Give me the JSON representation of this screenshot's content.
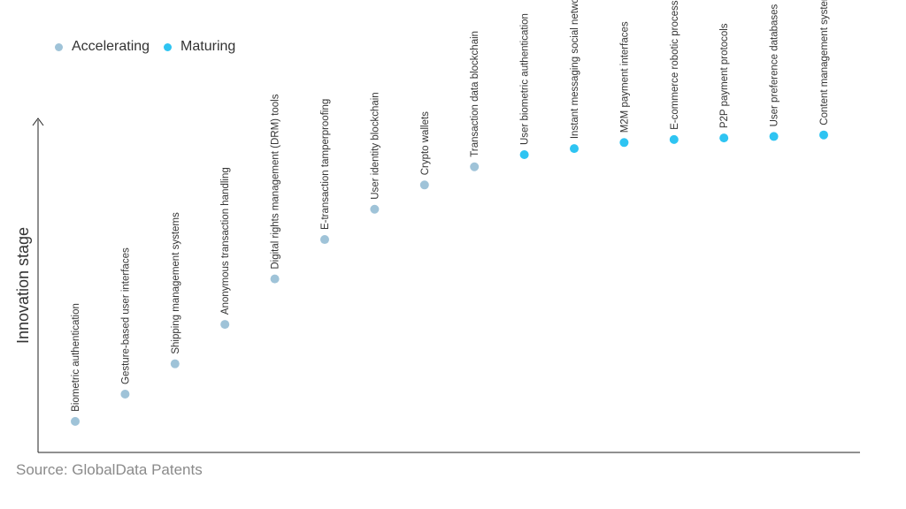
{
  "colors": {
    "accelerating": "#9fc3d8",
    "maturing": "#2ec4f2",
    "axis": "#222222"
  },
  "source": "Source: GlobalData Patents",
  "chart_data": {
    "type": "scatter",
    "ylabel": "Innovation stage",
    "legend": {
      "placement": "top-left",
      "entries": [
        {
          "label": "Accelerating",
          "color": "#9fc3d8"
        },
        {
          "label": "Maturing",
          "color": "#2ec4f2"
        }
      ]
    },
    "ylim": [
      0,
      100
    ],
    "grid": false,
    "points": [
      {
        "label": "Biometric authentication",
        "stage": "Accelerating",
        "value": 5
      },
      {
        "label": "Gesture-based user interfaces",
        "stage": "Accelerating",
        "value": 14
      },
      {
        "label": "Shipping management systems",
        "stage": "Accelerating",
        "value": 24
      },
      {
        "label": "Anonymous transaction handling",
        "stage": "Accelerating",
        "value": 37
      },
      {
        "label": "Digital rights management (DRM) tools",
        "stage": "Accelerating",
        "value": 52
      },
      {
        "label": "E-transaction tamperproofing",
        "stage": "Accelerating",
        "value": 65
      },
      {
        "label": "User identity blockchain",
        "stage": "Accelerating",
        "value": 75
      },
      {
        "label": "Crypto wallets",
        "stage": "Accelerating",
        "value": 83
      },
      {
        "label": "Transaction data blockchain",
        "stage": "Accelerating",
        "value": 89
      },
      {
        "label": "User biometric authentication",
        "stage": "Maturing",
        "value": 93
      },
      {
        "label": "Instant messaging social network",
        "stage": "Maturing",
        "value": 95
      },
      {
        "label": "M2M payment interfaces",
        "stage": "Maturing",
        "value": 97
      },
      {
        "label": "E-commerce robotic process automation",
        "stage": "Maturing",
        "value": 98
      },
      {
        "label": "P2P payment protocols",
        "stage": "Maturing",
        "value": 98.5
      },
      {
        "label": "User preference databases",
        "stage": "Maturing",
        "value": 99
      },
      {
        "label": "Content management system",
        "stage": "Maturing",
        "value": 99.5
      }
    ]
  }
}
